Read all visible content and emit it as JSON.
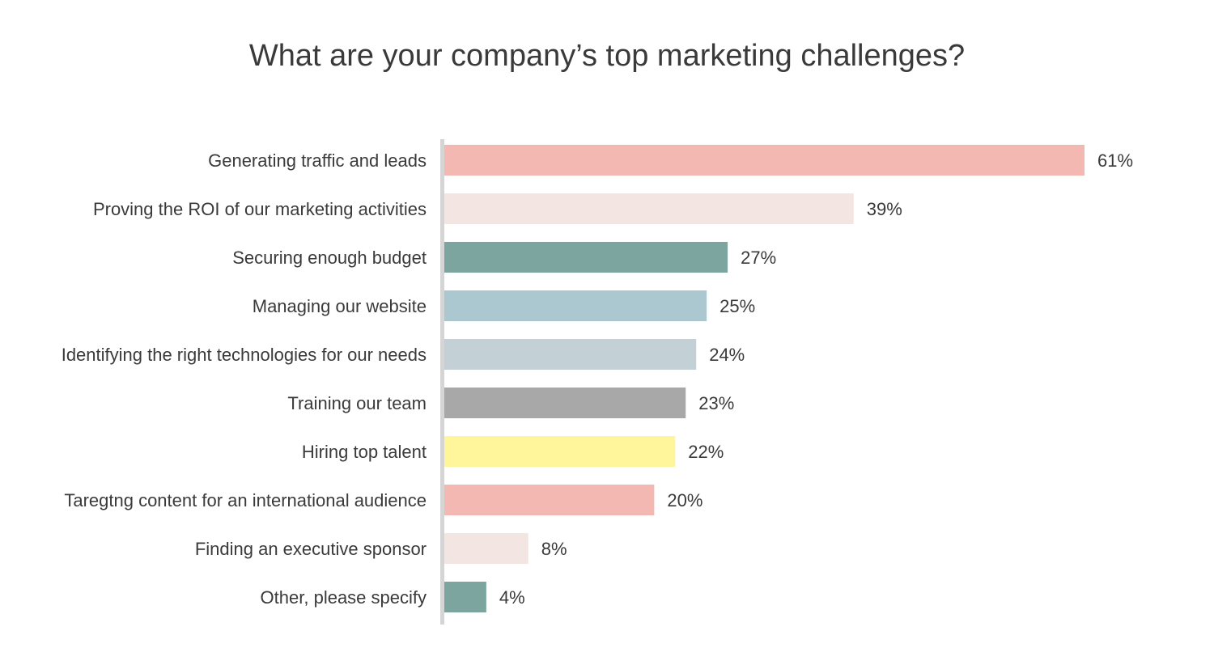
{
  "chart_data": {
    "type": "bar",
    "orientation": "horizontal",
    "title": "What are your company’s top marketing challenges?",
    "categories": [
      "Generating traffic and leads",
      "Proving the ROI of our marketing activities",
      "Securing enough budget",
      "Managing our website",
      "Identifying the right technologies for our needs",
      "Training our team",
      "Hiring top talent",
      "Taregtng content for an international audience",
      "Finding an executive sponsor",
      "Other, please specify"
    ],
    "values": [
      61,
      39,
      27,
      25,
      24,
      23,
      22,
      20,
      8,
      4
    ],
    "value_labels": [
      "61%",
      "39%",
      "27%",
      "25%",
      "24%",
      "23%",
      "22%",
      "20%",
      "8%",
      "4%"
    ],
    "colors": [
      "#f4b8b3",
      "#f3e5e1",
      "#7ba59e",
      "#abc8d1",
      "#c3d1d6",
      "#a8a8a8",
      "#fff59a",
      "#f4b8b3",
      "#f3e5e1",
      "#7ba59e"
    ],
    "axis_color": "#d5d5d5",
    "xlim": [
      0,
      61
    ],
    "grid": false,
    "legend": "none"
  }
}
